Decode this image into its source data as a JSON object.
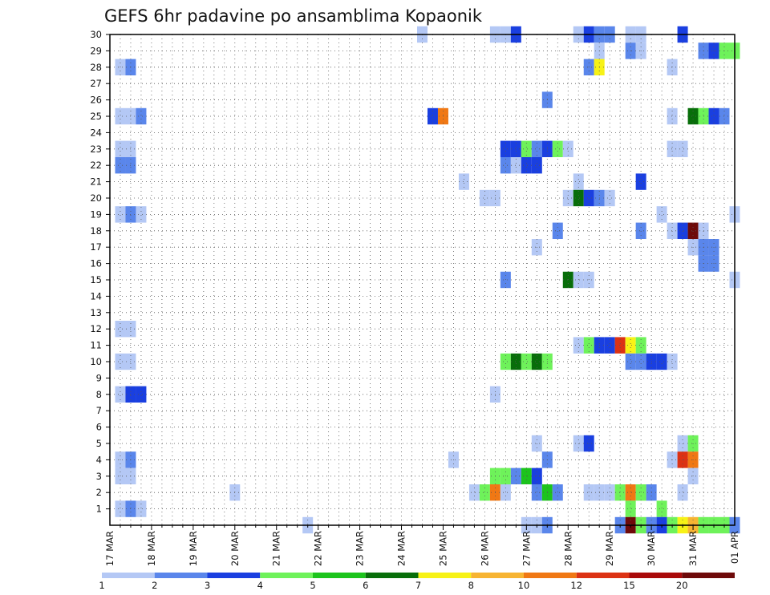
{
  "chart_data": {
    "type": "heatmap",
    "title": "GEFS 6hr padavine po ansamblima Kopaonik",
    "y_tick_labels": [
      "1",
      "2",
      "3",
      "4",
      "5",
      "6",
      "7",
      "8",
      "9",
      "10",
      "11",
      "12",
      "13",
      "14",
      "15",
      "16",
      "17",
      "18",
      "19",
      "20",
      "21",
      "22",
      "23",
      "24",
      "25",
      "26",
      "27",
      "28",
      "29",
      "30"
    ],
    "x_tick_labels": [
      "17 MAR",
      "18 MAR",
      "19 MAR",
      "20 MAR",
      "21 MAR",
      "22 MAR",
      "23 MAR",
      "24 MAR",
      "25 MAR",
      "26 MAR",
      "27 MAR",
      "28 MAR",
      "29 MAR",
      "30 MAR",
      "31 MAR",
      "01 APR"
    ],
    "x_range_steps": [
      0,
      60
    ],
    "y_range_members": [
      0,
      30
    ],
    "grid": true,
    "legend": {
      "position": "bottom",
      "labels": [
        "1",
        "2",
        "3",
        "4",
        "5",
        "6",
        "7",
        "8",
        "10",
        "12",
        "15",
        "20"
      ],
      "colors": [
        "#b4c8f5",
        "#5a86eb",
        "#1a3fe0",
        "#6ef25a",
        "#1cc41c",
        "#086e0a",
        "#f7f216",
        "#f7b432",
        "#f07814",
        "#dc3214",
        "#aa0a0a",
        "#6e0a0a"
      ]
    },
    "cells": [
      {
        "member": 30,
        "step": 30,
        "value": 1
      },
      {
        "member": 30,
        "step": 37,
        "value": 1
      },
      {
        "member": 30,
        "step": 38,
        "value": 1
      },
      {
        "member": 30,
        "step": 39,
        "value": 3
      },
      {
        "member": 30,
        "step": 45,
        "value": 1
      },
      {
        "member": 30,
        "step": 46,
        "value": 3
      },
      {
        "member": 30,
        "step": 47,
        "value": 2
      },
      {
        "member": 30,
        "step": 48,
        "value": 2
      },
      {
        "member": 30,
        "step": 50,
        "value": 1
      },
      {
        "member": 30,
        "step": 51,
        "value": 1
      },
      {
        "member": 30,
        "step": 55,
        "value": 3
      },
      {
        "member": 29,
        "step": 47,
        "value": 1
      },
      {
        "member": 29,
        "step": 50,
        "value": 2
      },
      {
        "member": 29,
        "step": 51,
        "value": 1
      },
      {
        "member": 29,
        "step": 57,
        "value": 2
      },
      {
        "member": 29,
        "step": 58,
        "value": 3
      },
      {
        "member": 29,
        "step": 59,
        "value": 4
      },
      {
        "member": 29,
        "step": 60,
        "value": 4
      },
      {
        "member": 28,
        "step": 1,
        "value": 1
      },
      {
        "member": 28,
        "step": 2,
        "value": 2
      },
      {
        "member": 28,
        "step": 46,
        "value": 2
      },
      {
        "member": 28,
        "step": 47,
        "value": 7
      },
      {
        "member": 28,
        "step": 54,
        "value": 1
      },
      {
        "member": 26,
        "step": 42,
        "value": 2
      },
      {
        "member": 25,
        "step": 1,
        "value": 1
      },
      {
        "member": 25,
        "step": 2,
        "value": 1
      },
      {
        "member": 25,
        "step": 3,
        "value": 2
      },
      {
        "member": 25,
        "step": 31,
        "value": 3
      },
      {
        "member": 25,
        "step": 32,
        "value": 9
      },
      {
        "member": 25,
        "step": 54,
        "value": 1
      },
      {
        "member": 25,
        "step": 56,
        "value": 6
      },
      {
        "member": 25,
        "step": 57,
        "value": 4
      },
      {
        "member": 25,
        "step": 58,
        "value": 3
      },
      {
        "member": 25,
        "step": 59,
        "value": 2
      },
      {
        "member": 23,
        "step": 1,
        "value": 1
      },
      {
        "member": 23,
        "step": 2,
        "value": 1
      },
      {
        "member": 23,
        "step": 38,
        "value": 3
      },
      {
        "member": 23,
        "step": 39,
        "value": 3
      },
      {
        "member": 23,
        "step": 40,
        "value": 4
      },
      {
        "member": 23,
        "step": 41,
        "value": 2
      },
      {
        "member": 23,
        "step": 42,
        "value": 3
      },
      {
        "member": 23,
        "step": 43,
        "value": 4
      },
      {
        "member": 23,
        "step": 44,
        "value": 1
      },
      {
        "member": 23,
        "step": 54,
        "value": 1
      },
      {
        "member": 23,
        "step": 55,
        "value": 1
      },
      {
        "member": 22,
        "step": 1,
        "value": 2
      },
      {
        "member": 22,
        "step": 2,
        "value": 2
      },
      {
        "member": 22,
        "step": 38,
        "value": 2
      },
      {
        "member": 22,
        "step": 39,
        "value": 1
      },
      {
        "member": 22,
        "step": 40,
        "value": 3
      },
      {
        "member": 22,
        "step": 41,
        "value": 3
      },
      {
        "member": 21,
        "step": 34,
        "value": 1
      },
      {
        "member": 21,
        "step": 45,
        "value": 1
      },
      {
        "member": 21,
        "step": 51,
        "value": 3
      },
      {
        "member": 20,
        "step": 36,
        "value": 1
      },
      {
        "member": 20,
        "step": 37,
        "value": 1
      },
      {
        "member": 20,
        "step": 44,
        "value": 1
      },
      {
        "member": 20,
        "step": 45,
        "value": 6
      },
      {
        "member": 20,
        "step": 46,
        "value": 3
      },
      {
        "member": 20,
        "step": 47,
        "value": 2
      },
      {
        "member": 20,
        "step": 48,
        "value": 1
      },
      {
        "member": 19,
        "step": 1,
        "value": 1
      },
      {
        "member": 19,
        "step": 2,
        "value": 2
      },
      {
        "member": 19,
        "step": 3,
        "value": 1
      },
      {
        "member": 19,
        "step": 53,
        "value": 1
      },
      {
        "member": 19,
        "step": 60,
        "value": 1
      },
      {
        "member": 18,
        "step": 43,
        "value": 2
      },
      {
        "member": 18,
        "step": 51,
        "value": 2
      },
      {
        "member": 18,
        "step": 54,
        "value": 1
      },
      {
        "member": 18,
        "step": 55,
        "value": 3
      },
      {
        "member": 18,
        "step": 56,
        "value": 12
      },
      {
        "member": 18,
        "step": 57,
        "value": 1
      },
      {
        "member": 17,
        "step": 41,
        "value": 1
      },
      {
        "member": 17,
        "step": 56,
        "value": 1
      },
      {
        "member": 17,
        "step": 57,
        "value": 2
      },
      {
        "member": 17,
        "step": 58,
        "value": 2
      },
      {
        "member": 16,
        "step": 57,
        "value": 2
      },
      {
        "member": 16,
        "step": 58,
        "value": 2
      },
      {
        "member": 15,
        "step": 38,
        "value": 2
      },
      {
        "member": 15,
        "step": 44,
        "value": 6
      },
      {
        "member": 15,
        "step": 45,
        "value": 1
      },
      {
        "member": 15,
        "step": 46,
        "value": 1
      },
      {
        "member": 15,
        "step": 60,
        "value": 1
      },
      {
        "member": 12,
        "step": 1,
        "value": 1
      },
      {
        "member": 12,
        "step": 2,
        "value": 1
      },
      {
        "member": 11,
        "step": 45,
        "value": 1
      },
      {
        "member": 11,
        "step": 46,
        "value": 4
      },
      {
        "member": 11,
        "step": 47,
        "value": 3
      },
      {
        "member": 11,
        "step": 48,
        "value": 3
      },
      {
        "member": 11,
        "step": 49,
        "value": 10
      },
      {
        "member": 11,
        "step": 50,
        "value": 7
      },
      {
        "member": 11,
        "step": 51,
        "value": 4
      },
      {
        "member": 10,
        "step": 1,
        "value": 1
      },
      {
        "member": 10,
        "step": 2,
        "value": 1
      },
      {
        "member": 10,
        "step": 38,
        "value": 4
      },
      {
        "member": 10,
        "step": 39,
        "value": 6
      },
      {
        "member": 10,
        "step": 40,
        "value": 4
      },
      {
        "member": 10,
        "step": 41,
        "value": 6
      },
      {
        "member": 10,
        "step": 42,
        "value": 4
      },
      {
        "member": 10,
        "step": 50,
        "value": 2
      },
      {
        "member": 10,
        "step": 51,
        "value": 2
      },
      {
        "member": 10,
        "step": 52,
        "value": 3
      },
      {
        "member": 10,
        "step": 53,
        "value": 3
      },
      {
        "member": 10,
        "step": 54,
        "value": 1
      },
      {
        "member": 8,
        "step": 1,
        "value": 1
      },
      {
        "member": 8,
        "step": 2,
        "value": 3
      },
      {
        "member": 8,
        "step": 3,
        "value": 3
      },
      {
        "member": 8,
        "step": 37,
        "value": 1
      },
      {
        "member": 5,
        "step": 41,
        "value": 1
      },
      {
        "member": 5,
        "step": 45,
        "value": 1
      },
      {
        "member": 5,
        "step": 46,
        "value": 3
      },
      {
        "member": 5,
        "step": 55,
        "value": 1
      },
      {
        "member": 5,
        "step": 56,
        "value": 4
      },
      {
        "member": 4,
        "step": 1,
        "value": 1
      },
      {
        "member": 4,
        "step": 2,
        "value": 2
      },
      {
        "member": 4,
        "step": 33,
        "value": 1
      },
      {
        "member": 4,
        "step": 42,
        "value": 2
      },
      {
        "member": 4,
        "step": 54,
        "value": 1
      },
      {
        "member": 4,
        "step": 55,
        "value": 10
      },
      {
        "member": 4,
        "step": 56,
        "value": 9
      },
      {
        "member": 3,
        "step": 1,
        "value": 1
      },
      {
        "member": 3,
        "step": 2,
        "value": 1
      },
      {
        "member": 3,
        "step": 37,
        "value": 4
      },
      {
        "member": 3,
        "step": 38,
        "value": 4
      },
      {
        "member": 3,
        "step": 39,
        "value": 2
      },
      {
        "member": 3,
        "step": 40,
        "value": 5
      },
      {
        "member": 3,
        "step": 41,
        "value": 3
      },
      {
        "member": 3,
        "step": 56,
        "value": 1
      },
      {
        "member": 2,
        "step": 12,
        "value": 1
      },
      {
        "member": 2,
        "step": 35,
        "value": 1
      },
      {
        "member": 2,
        "step": 36,
        "value": 4
      },
      {
        "member": 2,
        "step": 37,
        "value": 9
      },
      {
        "member": 2,
        "step": 38,
        "value": 1
      },
      {
        "member": 2,
        "step": 41,
        "value": 2
      },
      {
        "member": 2,
        "step": 42,
        "value": 5
      },
      {
        "member": 2,
        "step": 43,
        "value": 2
      },
      {
        "member": 2,
        "step": 46,
        "value": 1
      },
      {
        "member": 2,
        "step": 47,
        "value": 1
      },
      {
        "member": 2,
        "step": 48,
        "value": 1
      },
      {
        "member": 2,
        "step": 49,
        "value": 4
      },
      {
        "member": 2,
        "step": 50,
        "value": 9
      },
      {
        "member": 2,
        "step": 51,
        "value": 4
      },
      {
        "member": 2,
        "step": 52,
        "value": 2
      },
      {
        "member": 2,
        "step": 55,
        "value": 1
      },
      {
        "member": 1,
        "step": 1,
        "value": 1
      },
      {
        "member": 1,
        "step": 2,
        "value": 2
      },
      {
        "member": 1,
        "step": 3,
        "value": 1
      },
      {
        "member": 1,
        "step": 50,
        "value": 4
      },
      {
        "member": 1,
        "step": 53,
        "value": 4
      },
      {
        "member": 0,
        "step": 19,
        "value": 1
      },
      {
        "member": 0,
        "step": 40,
        "value": 1
      },
      {
        "member": 0,
        "step": 41,
        "value": 1
      },
      {
        "member": 0,
        "step": 42,
        "value": 2
      },
      {
        "member": 0,
        "step": 49,
        "value": 2
      },
      {
        "member": 0,
        "step": 50,
        "value": 12
      },
      {
        "member": 0,
        "step": 51,
        "value": 4
      },
      {
        "member": 0,
        "step": 52,
        "value": 2
      },
      {
        "member": 0,
        "step": 53,
        "value": 3
      },
      {
        "member": 0,
        "step": 54,
        "value": 4
      },
      {
        "member": 0,
        "step": 55,
        "value": 7
      },
      {
        "member": 0,
        "step": 56,
        "value": 8
      },
      {
        "member": 0,
        "step": 57,
        "value": 4
      },
      {
        "member": 0,
        "step": 58,
        "value": 4
      },
      {
        "member": 0,
        "step": 59,
        "value": 4
      },
      {
        "member": 0,
        "step": 60,
        "value": 2
      }
    ]
  }
}
